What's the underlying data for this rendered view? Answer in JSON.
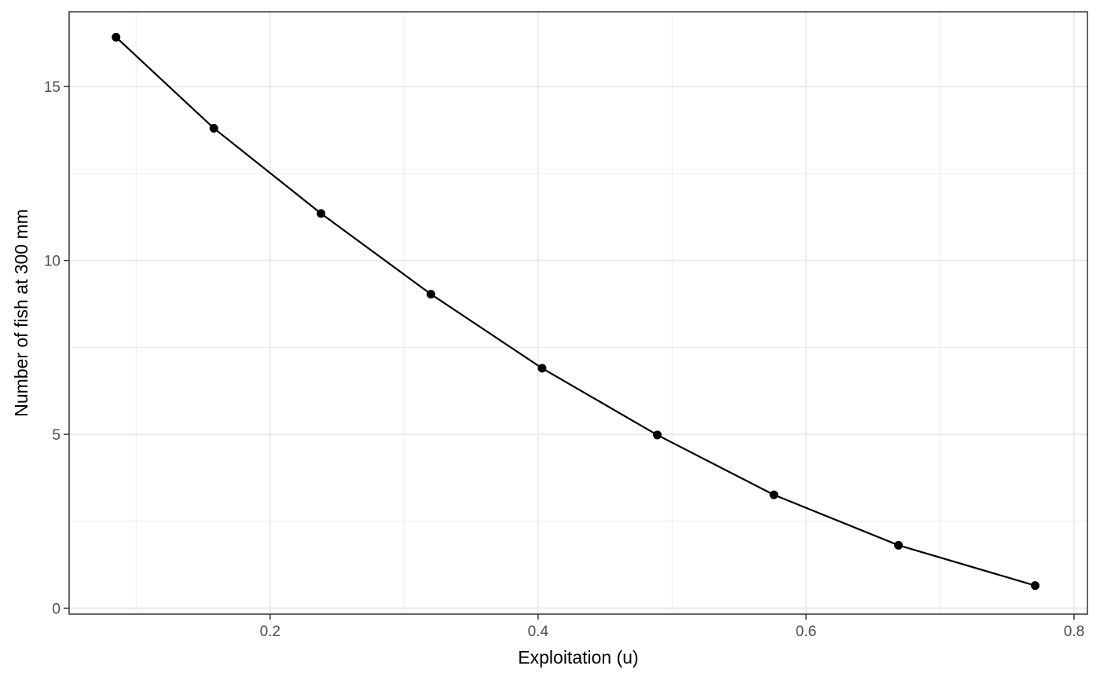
{
  "chart_data": {
    "type": "line",
    "title": "",
    "xlabel": "Exploitation (u)",
    "ylabel": "Number of fish at 300 mm",
    "xlim": [
      0.05,
      0.81
    ],
    "ylim": [
      -0.17,
      17.15
    ],
    "x_ticks": [
      0.2,
      0.4,
      0.6,
      0.8
    ],
    "x_tick_labels": [
      "0.2",
      "0.4",
      "0.6",
      "0.8"
    ],
    "x_minor_ticks": [
      0.1,
      0.3,
      0.5,
      0.7
    ],
    "y_ticks": [
      0,
      5,
      10,
      15
    ],
    "y_tick_labels": [
      "0",
      "5",
      "10",
      "15"
    ],
    "y_minor_ticks": [
      2.5,
      7.5,
      12.5
    ],
    "grid": true,
    "legend": "none",
    "colors": {
      "line": "#000000",
      "point": "#000000",
      "grid": "#ebebeb",
      "border": "#333333",
      "tick_text": "#4d4d4d"
    },
    "series": [
      {
        "x": [
          0.085,
          0.158,
          0.238,
          0.32,
          0.403,
          0.489,
          0.576,
          0.669,
          0.771
        ],
        "values": [
          16.42,
          13.8,
          11.35,
          9.03,
          6.9,
          4.98,
          3.26,
          1.81,
          0.65
        ]
      }
    ]
  }
}
